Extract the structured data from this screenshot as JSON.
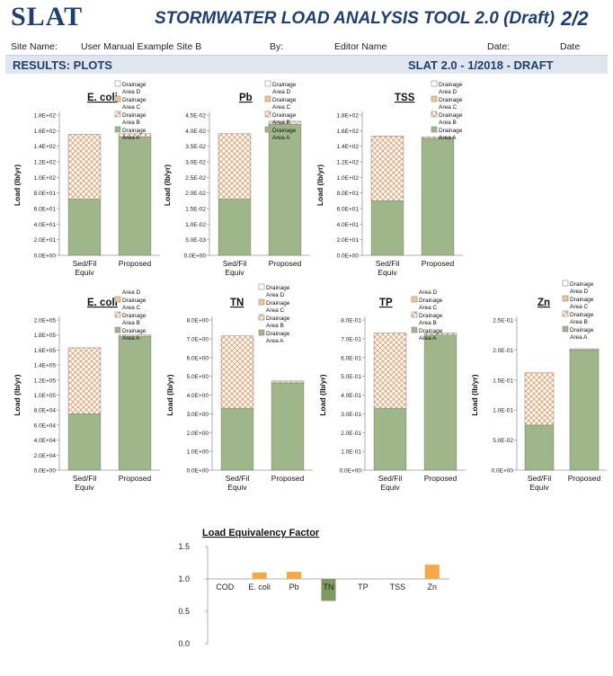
{
  "header": {
    "logo": "SLAT",
    "title": "STORMWATER LOAD ANALYSIS TOOL 2.0 (Draft)",
    "page": "2/2"
  },
  "info": {
    "site_label": "Site Name:",
    "site_value": "User Manual Example Site B",
    "by_label": "By:",
    "by_value": "Editor Name",
    "date_label": "Date:",
    "date_value": "Date"
  },
  "section": {
    "left": "RESULTS: PLOTS",
    "right": "SLAT 2.0 - 1/2018 - DRAFT"
  },
  "colors": {
    "area_a": "#9fb58a",
    "area_b_stroke": "#e39a63",
    "axis": "#999999"
  },
  "chart_data": [
    {
      "type": "bar",
      "stacked": true,
      "title": "E. coli",
      "ylabel": "Load (lb/yr)",
      "categories": [
        "Sed/Fil Equiv",
        "Proposed"
      ],
      "yticks": [
        "0.0E+00",
        "2.0E+01",
        "4.0E+01",
        "6.0E+01",
        "8.0E+01",
        "1.0E+02",
        "1.2E+02",
        "1.4E+02",
        "1.6E+02",
        "1.8E+02"
      ],
      "ylim": [
        0,
        180
      ],
      "series": [
        {
          "name": "Drainage Area A",
          "values": [
            72,
            152
          ]
        },
        {
          "name": "Drainage Area B",
          "values": [
            83,
            4
          ]
        }
      ],
      "legend": [
        "Drainage Area D",
        "Drainage Area C",
        "Drainage Area B",
        "Drainage Area A"
      ]
    },
    {
      "type": "bar",
      "stacked": true,
      "title": "Pb",
      "ylabel": "Load (lb/yr)",
      "categories": [
        "Sed/Fil Equiv",
        "Proposed"
      ],
      "yticks": [
        "0.0E+00",
        "5.0E-03",
        "1.0E-02",
        "1.5E-02",
        "2.0E-02",
        "2.5E-02",
        "3.0E-02",
        "3.5E-02",
        "4.0E-02",
        "4.5E-02"
      ],
      "ylim": [
        0,
        0.045
      ],
      "series": [
        {
          "name": "Drainage Area A",
          "values": [
            0.018,
            0.042
          ]
        },
        {
          "name": "Drainage Area B",
          "values": [
            0.021,
            0.001
          ]
        }
      ],
      "legend": [
        "Drainage Area D",
        "Drainage Area C",
        "Drainage Area B",
        "Drainage Area A"
      ]
    },
    {
      "type": "bar",
      "stacked": true,
      "title": "TSS",
      "ylabel": "Load (lb/yr)",
      "categories": [
        "Sed/Fil Equiv",
        "Proposed"
      ],
      "yticks": [
        "0.0E+00",
        "2.0E+01",
        "4.0E+01",
        "6.0E+01",
        "8.0E+01",
        "1.0E+02",
        "1.2E+02",
        "1.4E+02",
        "1.6E+02",
        "1.8E+02"
      ],
      "ylim": [
        0,
        180
      ],
      "series": [
        {
          "name": "Drainage Area A",
          "values": [
            70,
            150
          ]
        },
        {
          "name": "Drainage Area B",
          "values": [
            83,
            2
          ]
        }
      ],
      "legend": [
        "Drainage Area D",
        "Drainage Area C",
        "Drainage Area B",
        "Drainage Area A"
      ]
    },
    {
      "type": "bar",
      "stacked": true,
      "title": "E. coli",
      "ylabel": "Load (lb/yr)",
      "categories": [
        "Sed/Fil Equiv",
        "Proposed"
      ],
      "yticks": [
        "0.0E+00",
        "2.0E+04",
        "4.0E+04",
        "6.0E+04",
        "8.0E+04",
        "1.0E+05",
        "1.2E+05",
        "1.4E+05",
        "1.6E+05",
        "1.8E+05",
        "2.0E+05"
      ],
      "ylim": [
        0,
        200000
      ],
      "series": [
        {
          "name": "Drainage Area A",
          "values": [
            75000,
            178000
          ]
        },
        {
          "name": "Drainage Area B",
          "values": [
            88000,
            2000
          ]
        }
      ],
      "legend": [
        "Area D",
        "Drainage Area C",
        "Drainage Area B",
        "Drainage Area A"
      ]
    },
    {
      "type": "bar",
      "stacked": true,
      "title": "TN",
      "ylabel": "Load (lb/yr)",
      "categories": [
        "Sed/Fil Equiv",
        "Proposed"
      ],
      "yticks": [
        "0.0E+00",
        "1.0E+00",
        "2.0E+00",
        "3.0E+00",
        "4.0E+00",
        "5.0E+00",
        "6.0E+00",
        "7.0E+00",
        "8.0E+00"
      ],
      "ylim": [
        0,
        8
      ],
      "series": [
        {
          "name": "Drainage Area A",
          "values": [
            3.3,
            4.65
          ]
        },
        {
          "name": "Drainage Area B",
          "values": [
            3.85,
            0.1
          ]
        }
      ],
      "legend": [
        "Drainage Area D",
        "Drainage Area C",
        "Drainage Area B",
        "Drainage Area A"
      ]
    },
    {
      "type": "bar",
      "stacked": true,
      "title": "TP",
      "ylabel": "Load (lb/yr)",
      "categories": [
        "Sed/Fil Equiv",
        "Proposed"
      ],
      "yticks": [
        "0.0E+00",
        "1.0E-01",
        "2.0E-01",
        "3.0E-01",
        "4.0E-01",
        "5.0E-01",
        "6.0E-01",
        "7.0E-01",
        "8.0E-01"
      ],
      "ylim": [
        0,
        0.8
      ],
      "series": [
        {
          "name": "Drainage Area A",
          "values": [
            0.33,
            0.72
          ]
        },
        {
          "name": "Drainage Area B",
          "values": [
            0.4,
            0.01
          ]
        }
      ],
      "legend": [
        "Area D",
        "Drainage Area C",
        "Drainage Area B",
        "Drainage Area A"
      ]
    },
    {
      "type": "bar",
      "stacked": true,
      "title": "Zn",
      "ylabel": "Load (lb/yr)",
      "categories": [
        "Sed/Fil Equiv",
        "Proposed"
      ],
      "yticks": [
        "0.0E+00",
        "5.0E-02",
        "1.0E-01",
        "1.5E-01",
        "2.0E-01",
        "2.5E-01"
      ],
      "ylim": [
        0,
        0.25
      ],
      "series": [
        {
          "name": "Drainage Area A",
          "values": [
            0.075,
            0.2
          ]
        },
        {
          "name": "Drainage Area B",
          "values": [
            0.087,
            0.002
          ]
        }
      ],
      "legend": [
        "Drainage Area D",
        "Drainage Area C",
        "Drainage Area B",
        "Drainage Area A"
      ]
    },
    {
      "type": "bar",
      "title": "Load Equivalency Factor",
      "baseline": 1.0,
      "categories": [
        "COD",
        "E. coli",
        "Pb",
        "TN",
        "TP",
        "TSS",
        "Zn"
      ],
      "values": [
        1.0,
        1.1,
        1.11,
        0.66,
        1.0,
        1.0,
        1.22
      ],
      "yticks": [
        "0.0",
        "0.5",
        "1.0",
        "1.5"
      ],
      "ylim": [
        0,
        1.5
      ]
    }
  ]
}
